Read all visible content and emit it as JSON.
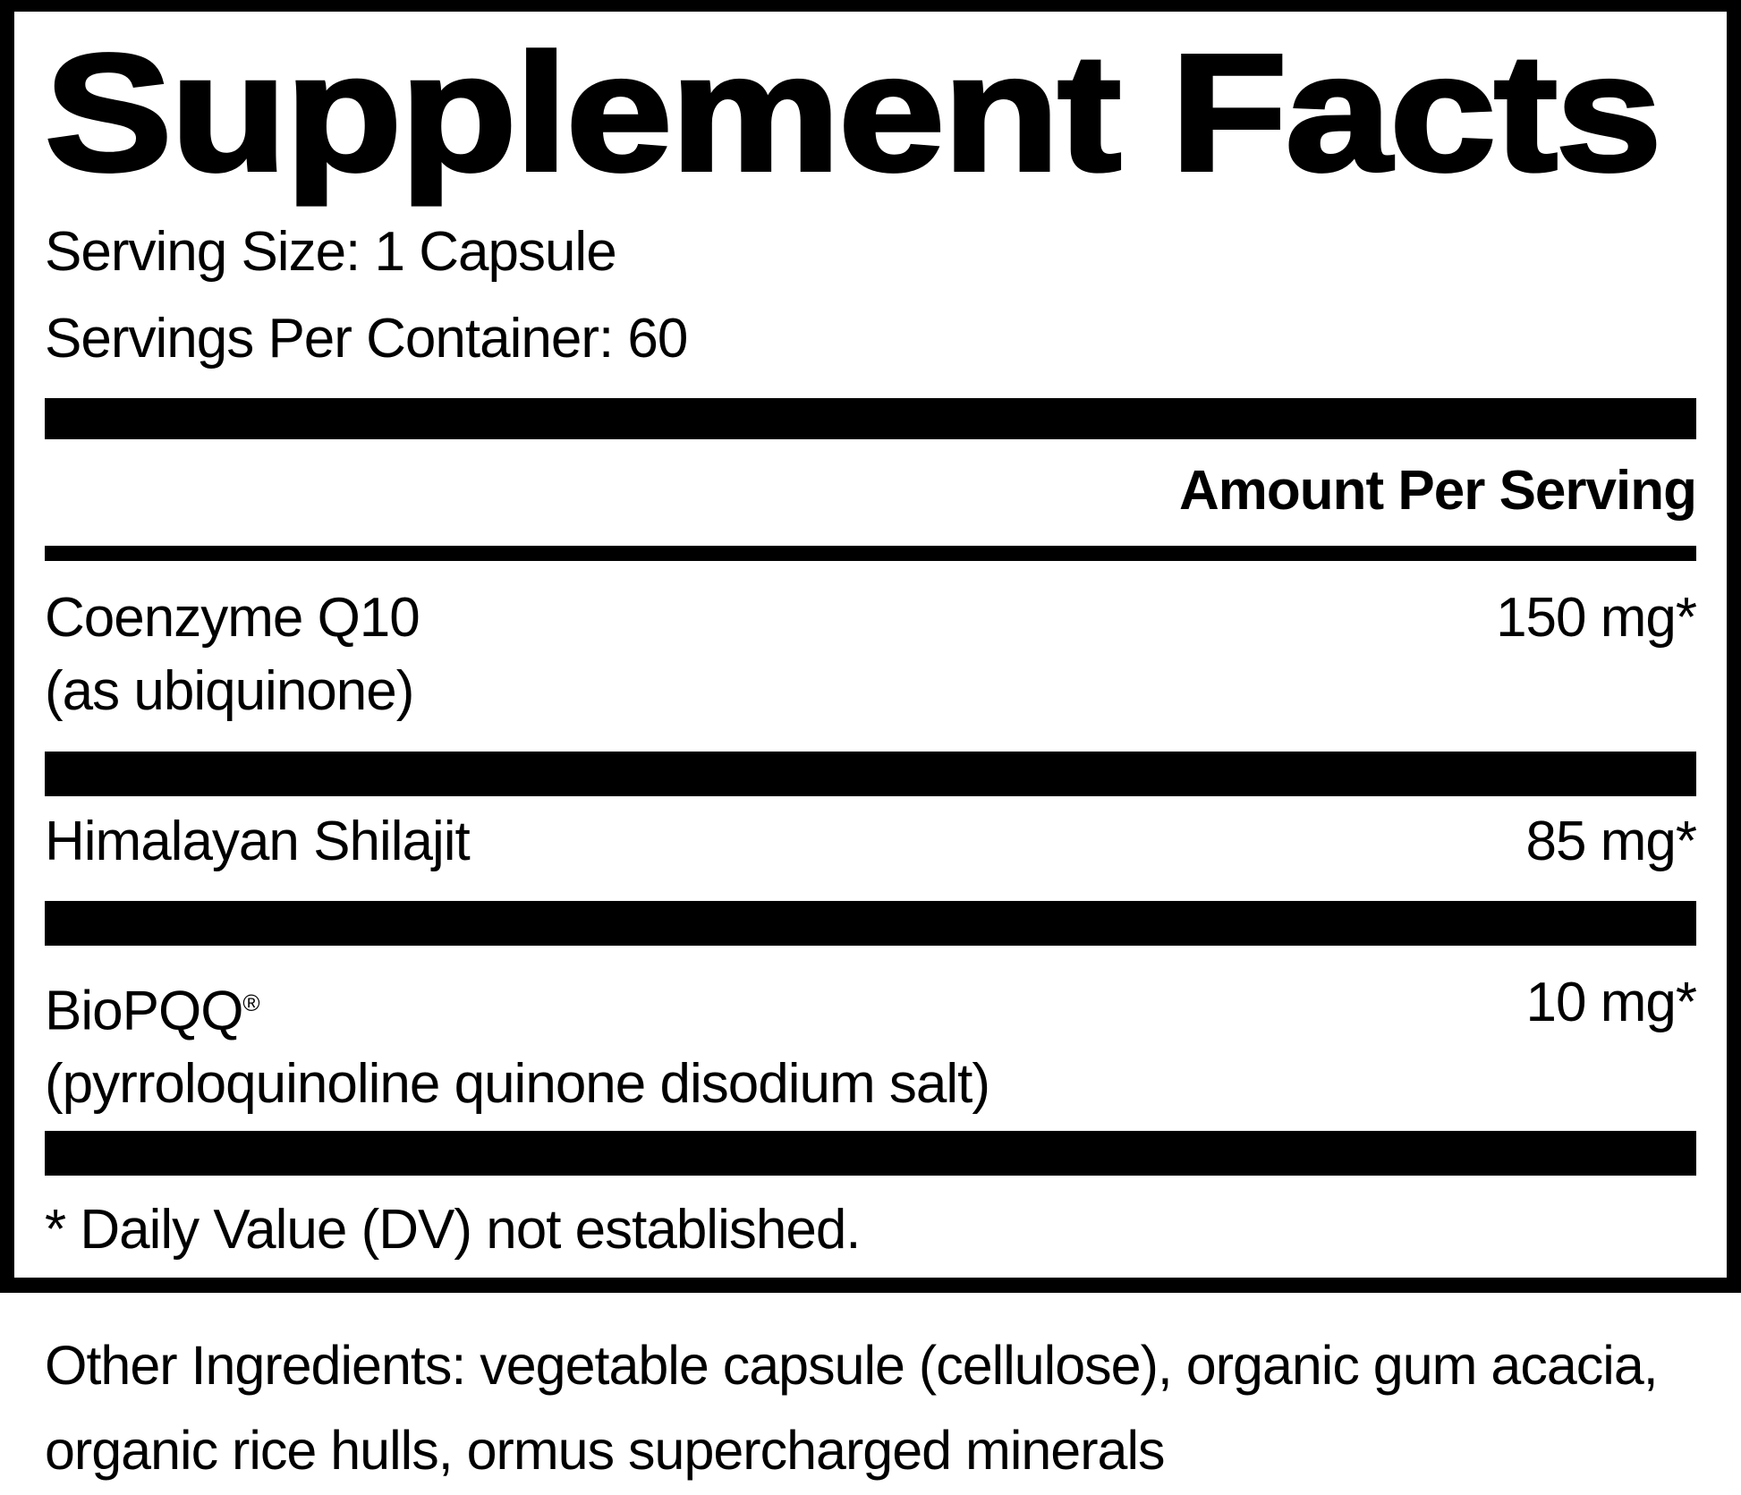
{
  "panel": {
    "title": "Supplement Facts",
    "serving_size": "Serving Size: 1 Capsule",
    "servings_per_container": "Servings Per Container: 60",
    "amount_header": "Amount Per Serving",
    "rows": [
      {
        "name": "Coenzyme Q10",
        "detail": "(as ubiquinone)",
        "amount": "150 mg*"
      },
      {
        "name": "Himalayan Shilajit",
        "amount": "85 mg*"
      },
      {
        "name": "BioPQQ",
        "mark": "®",
        "detail": "(pyrroloquinoline quinone disodium salt)",
        "amount": "10 mg*"
      }
    ],
    "footnote": "* Daily Value (DV) not established.",
    "other_ingredients_lines": [
      "Other Ingredients: vegetable capsule (cellulose), organic gum acacia,",
      "organic rice hulls, ormus supercharged minerals"
    ]
  },
  "colors": {
    "text": "#000000",
    "background": "#ffffff"
  }
}
